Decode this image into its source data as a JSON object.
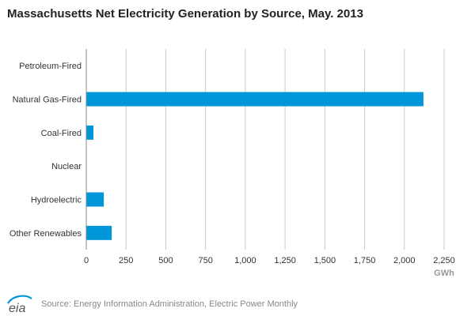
{
  "chart_data": {
    "type": "bar",
    "orientation": "horizontal",
    "title": "Massachusetts Net Electricity Generation by Source, May. 2013",
    "xlabel": "GWh",
    "ylabel": "",
    "categories": [
      "Petroleum-Fired",
      "Natural Gas-Fired",
      "Coal-Fired",
      "Nuclear",
      "Hydroelectric",
      "Other Renewables"
    ],
    "values": [
      0,
      2120,
      45,
      0,
      110,
      160
    ],
    "xlim": [
      0,
      2250
    ],
    "xticks": [
      0,
      250,
      500,
      750,
      1000,
      1250,
      1500,
      1750,
      2000,
      2250
    ],
    "xtick_labels": [
      "0",
      "250",
      "500",
      "750",
      "1,000",
      "1,250",
      "1,500",
      "1,750",
      "2,000",
      "2,250"
    ],
    "grid": "vertical",
    "bar_color": "#0096d7",
    "grid_color": "#c8c8c8",
    "axis_color": "#888888"
  },
  "footer": {
    "logo_text": "eia",
    "source": "Source: Energy Information Administration, Electric Power Monthly"
  }
}
